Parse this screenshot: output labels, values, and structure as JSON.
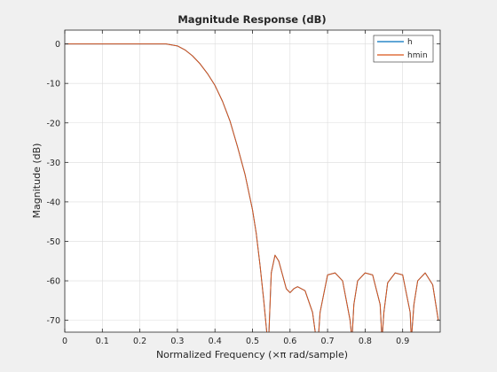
{
  "chart_data": {
    "type": "line",
    "title": "Magnitude Response (dB)",
    "xlabel": "Normalized Frequency  (×π rad/sample)",
    "ylabel": "Magnitude (dB)",
    "xlim": [
      0,
      1
    ],
    "ylim": [
      -73,
      3.5
    ],
    "xticks": [
      0,
      0.1,
      0.2,
      0.3,
      0.4,
      0.5,
      0.6,
      0.7,
      0.8,
      0.9
    ],
    "xtick_labels": [
      "0",
      "0.1",
      "0.2",
      "0.3",
      "0.4",
      "0.5",
      "0.6",
      "0.7",
      "0.8",
      "0.9"
    ],
    "yticks": [
      0,
      -10,
      -20,
      -30,
      -40,
      -50,
      -60,
      -70
    ],
    "ytick_labels": [
      "0",
      "-10",
      "-20",
      "-30",
      "-40",
      "-50",
      "-60",
      "-70"
    ],
    "grid": true,
    "legend_position": "top-right",
    "series": [
      {
        "name": "h",
        "color": "#0072bd",
        "x": [
          0,
          0.05,
          0.1,
          0.15,
          0.2,
          0.25,
          0.27,
          0.3,
          0.32,
          0.34,
          0.36,
          0.38,
          0.4,
          0.42,
          0.44,
          0.46,
          0.48,
          0.5,
          0.51,
          0.52,
          0.53,
          0.54,
          0.543,
          0.55,
          0.56,
          0.57,
          0.58,
          0.59,
          0.6,
          0.61,
          0.62,
          0.64,
          0.66,
          0.67,
          0.675,
          0.68,
          0.7,
          0.72,
          0.74,
          0.76,
          0.765,
          0.77,
          0.78,
          0.8,
          0.82,
          0.84,
          0.845,
          0.85,
          0.86,
          0.88,
          0.9,
          0.92,
          0.923,
          0.93,
          0.94,
          0.96,
          0.98,
          0.995
        ],
        "y": [
          0,
          0,
          0,
          0,
          0,
          0,
          0,
          -0.5,
          -1.5,
          -3,
          -5,
          -7.5,
          -10.5,
          -14.5,
          -19.5,
          -26,
          -33,
          -42,
          -48,
          -56,
          -65,
          -75,
          -75,
          -58,
          -53.5,
          -55,
          -58.5,
          -62,
          -63,
          -62,
          -61.5,
          -62.5,
          -68,
          -75,
          -75,
          -68,
          -58.5,
          -58,
          -60,
          -70,
          -75,
          -66,
          -60,
          -58,
          -58.5,
          -66,
          -75,
          -68,
          -60.5,
          -58,
          -58.5,
          -68,
          -75,
          -66,
          -60,
          -58,
          -61,
          -70
        ]
      },
      {
        "name": "hmin",
        "color": "#d95319",
        "x": [
          0,
          0.05,
          0.1,
          0.15,
          0.2,
          0.25,
          0.27,
          0.3,
          0.32,
          0.34,
          0.36,
          0.38,
          0.4,
          0.42,
          0.44,
          0.46,
          0.48,
          0.5,
          0.51,
          0.52,
          0.53,
          0.54,
          0.543,
          0.55,
          0.56,
          0.57,
          0.58,
          0.59,
          0.6,
          0.61,
          0.62,
          0.64,
          0.66,
          0.67,
          0.675,
          0.68,
          0.7,
          0.72,
          0.74,
          0.76,
          0.765,
          0.77,
          0.78,
          0.8,
          0.82,
          0.84,
          0.845,
          0.85,
          0.86,
          0.88,
          0.9,
          0.92,
          0.923,
          0.93,
          0.94,
          0.96,
          0.98,
          0.995
        ],
        "y": [
          0,
          0,
          0,
          0,
          0,
          0,
          0,
          -0.5,
          -1.5,
          -3,
          -5,
          -7.5,
          -10.5,
          -14.5,
          -19.5,
          -26,
          -33,
          -42,
          -48,
          -56,
          -65,
          -75,
          -75,
          -58,
          -53.5,
          -55,
          -58.5,
          -62,
          -63,
          -62,
          -61.5,
          -62.5,
          -68,
          -75,
          -75,
          -68,
          -58.5,
          -58,
          -60,
          -70,
          -75,
          -66,
          -60,
          -58,
          -58.5,
          -66,
          -75,
          -68,
          -60.5,
          -58,
          -58.5,
          -68,
          -75,
          -66,
          -60,
          -58,
          -61,
          -70
        ]
      }
    ]
  }
}
